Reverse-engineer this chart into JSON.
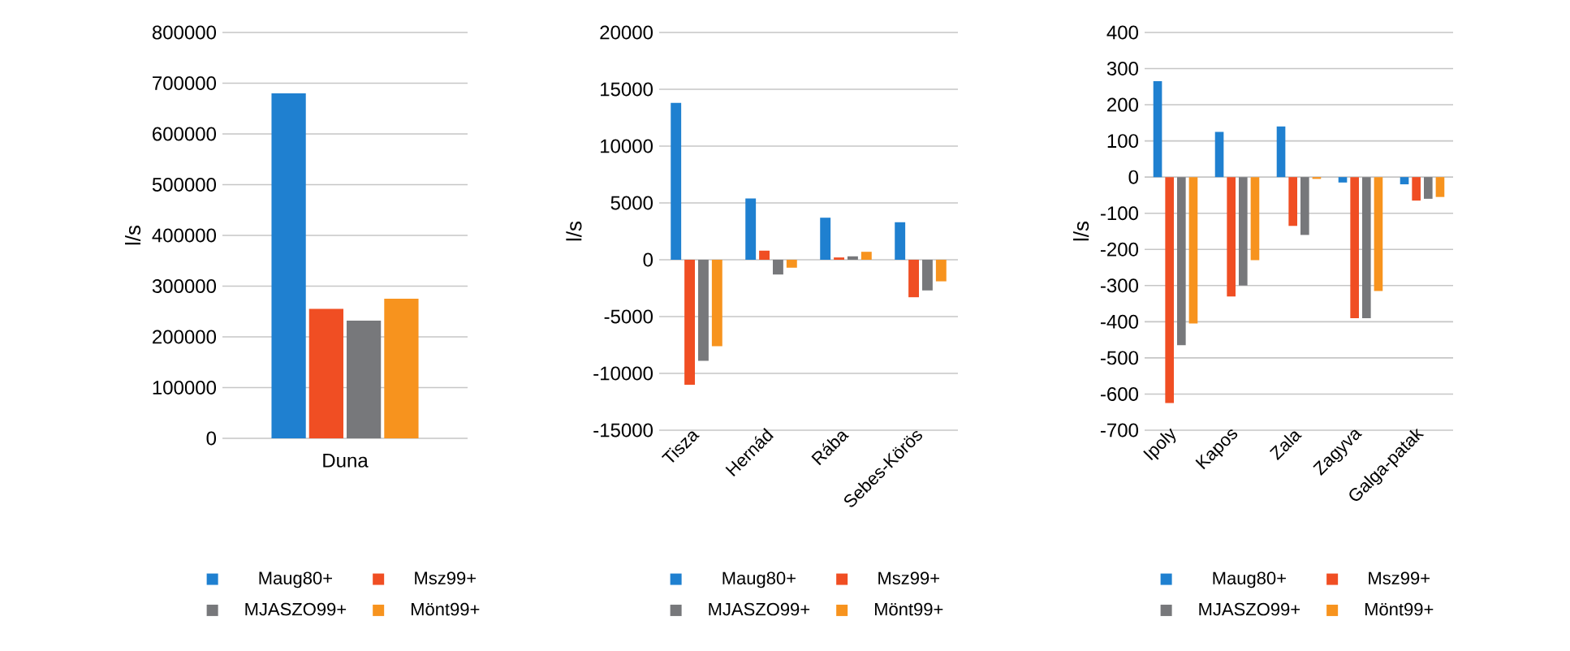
{
  "chart_data": [
    {
      "type": "bar",
      "categories": [
        "Duna"
      ],
      "ylabel": "l/s",
      "ylim": [
        0,
        800000
      ],
      "yticks": [
        0,
        100000,
        200000,
        300000,
        400000,
        500000,
        600000,
        700000,
        800000
      ],
      "grid": "y",
      "legend": "bottom",
      "series": [
        {
          "name": "Maug80+",
          "color": "#1f80d0",
          "values": [
            680000
          ]
        },
        {
          "name": "Msz99+",
          "color": "#f04e23",
          "values": [
            255000
          ]
        },
        {
          "name": "MJASZO99+",
          "color": "#77787b",
          "values": [
            232000
          ]
        },
        {
          "name": "Mönt99+",
          "color": "#f7931e",
          "values": [
            275000
          ]
        }
      ]
    },
    {
      "type": "bar",
      "categories": [
        "Tisza",
        "Hernád",
        "Rába",
        "Sebes-Körös"
      ],
      "ylabel": "l/s",
      "ylim": [
        -15000,
        20000
      ],
      "yticks": [
        -15000,
        -10000,
        -5000,
        0,
        5000,
        10000,
        15000,
        20000
      ],
      "grid": "y",
      "legend": "bottom",
      "series": [
        {
          "name": "Maug80+",
          "color": "#1f80d0",
          "values": [
            13800,
            5400,
            3700,
            3300
          ]
        },
        {
          "name": "Msz99+",
          "color": "#f04e23",
          "values": [
            -11000,
            800,
            200,
            -3300
          ]
        },
        {
          "name": "MJASZO99+",
          "color": "#77787b",
          "values": [
            -8900,
            -1300,
            300,
            -2700
          ]
        },
        {
          "name": "Mönt99+",
          "color": "#f7931e",
          "values": [
            -7600,
            -700,
            700,
            -1900
          ]
        }
      ]
    },
    {
      "type": "bar",
      "categories": [
        "Ipoly",
        "Kapos",
        "Zala",
        "Zagyva",
        "Galga-patak"
      ],
      "ylabel": "l/s",
      "ylim": [
        -700,
        400
      ],
      "yticks": [
        -700,
        -600,
        -500,
        -400,
        -300,
        -200,
        -100,
        0,
        100,
        200,
        300,
        400
      ],
      "grid": "y",
      "legend": "bottom",
      "series": [
        {
          "name": "Maug80+",
          "color": "#1f80d0",
          "values": [
            265,
            125,
            140,
            -15,
            -20
          ]
        },
        {
          "name": "Msz99+",
          "color": "#f04e23",
          "values": [
            -625,
            -330,
            -135,
            -390,
            -65
          ]
        },
        {
          "name": "MJASZO99+",
          "color": "#77787b",
          "values": [
            -465,
            -300,
            -160,
            -390,
            -60
          ]
        },
        {
          "name": "Mönt99+",
          "color": "#f7931e",
          "values": [
            -405,
            -230,
            -5,
            -315,
            -55
          ]
        }
      ]
    }
  ]
}
